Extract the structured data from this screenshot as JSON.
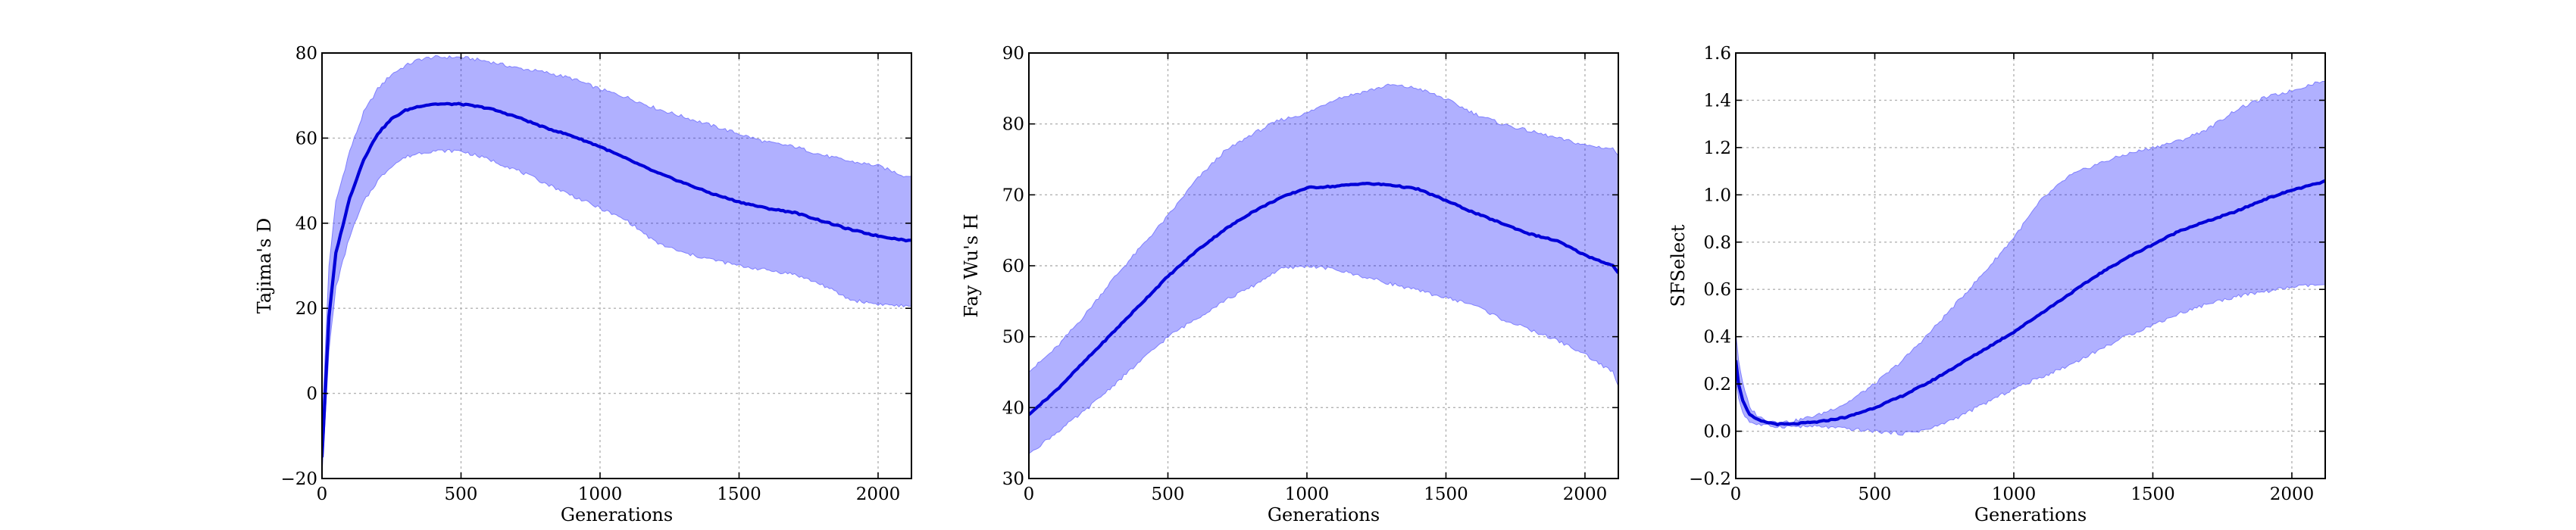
{
  "chart_data": [
    {
      "type": "line",
      "title": "",
      "xlabel": "Generations",
      "ylabel": "Tajima's D",
      "xlim": [
        0,
        2120
      ],
      "ylim": [
        -20,
        80
      ],
      "xticks": [
        0,
        500,
        1000,
        1500,
        2000
      ],
      "yticks": [
        -20,
        0,
        20,
        40,
        60,
        80
      ],
      "xtick_labels": [
        "0",
        "500",
        "1000",
        "1500",
        "2000"
      ],
      "ytick_labels": [
        "−20",
        "0",
        "20",
        "40",
        "60",
        "80"
      ],
      "grid": true,
      "color": "#0000d8",
      "band_color": "#b0b0ff",
      "series": [
        {
          "x": [
            0,
            25,
            50,
            100,
            150,
            200,
            250,
            300,
            350,
            400,
            450,
            500,
            550,
            600,
            700,
            800,
            900,
            1000,
            1100,
            1200,
            1300,
            1400,
            1500,
            1600,
            1700,
            1800,
            1900,
            2000,
            2100,
            2120
          ],
          "values": [
            -15,
            18,
            33,
            46,
            55,
            61,
            64.5,
            66.5,
            67.5,
            68,
            68,
            68,
            67.5,
            67,
            65,
            62.5,
            60.5,
            58,
            55,
            52,
            49.5,
            47,
            45,
            43.5,
            42.5,
            40.5,
            38.5,
            37,
            36,
            36
          ],
          "lower": [
            -19,
            10,
            25,
            37,
            45,
            50,
            53.5,
            55.5,
            56.5,
            57,
            57,
            57,
            56,
            55,
            52.5,
            49.5,
            46.5,
            43.5,
            40.5,
            35.5,
            33,
            31.5,
            30,
            29,
            28,
            25.5,
            22,
            21,
            20.5,
            20.5
          ],
          "upper": [
            -8,
            30,
            45,
            57,
            66,
            71.5,
            75,
            77,
            78.5,
            79,
            79,
            79,
            78.5,
            78,
            76.5,
            75.5,
            74,
            71.5,
            69.5,
            67,
            65,
            63,
            61,
            59,
            58,
            56,
            54.5,
            53.5,
            51,
            51
          ]
        }
      ]
    },
    {
      "type": "line",
      "title": "",
      "xlabel": "Generations",
      "ylabel": "Fay Wu's H",
      "xlim": [
        0,
        2120
      ],
      "ylim": [
        30,
        90
      ],
      "xticks": [
        0,
        500,
        1000,
        1500,
        2000
      ],
      "yticks": [
        30,
        40,
        50,
        60,
        70,
        80,
        90
      ],
      "xtick_labels": [
        "0",
        "500",
        "1000",
        "1500",
        "2000"
      ],
      "ytick_labels": [
        "30",
        "40",
        "50",
        "60",
        "70",
        "80",
        "90"
      ],
      "grid": true,
      "color": "#0000d8",
      "band_color": "#b0b0ff",
      "series": [
        {
          "x": [
            0,
            100,
            200,
            300,
            400,
            500,
            600,
            700,
            800,
            900,
            1000,
            1100,
            1200,
            1300,
            1400,
            1500,
            1600,
            1700,
            1800,
            1900,
            2000,
            2100,
            2120
          ],
          "values": [
            39,
            42.5,
            46.5,
            50.5,
            54.5,
            58.5,
            62,
            65,
            67.5,
            69.5,
            71,
            71.2,
            71.6,
            71.4,
            70.8,
            69.2,
            67.5,
            66,
            64.5,
            63.5,
            61.5,
            60,
            59
          ],
          "lower": [
            33.5,
            36.5,
            39.5,
            43,
            46.5,
            50,
            52.5,
            55,
            57,
            59.5,
            60,
            59.5,
            58.5,
            57.5,
            56.5,
            55.5,
            54.5,
            52.5,
            51,
            49.5,
            47.5,
            45,
            43
          ],
          "upper": [
            45,
            48.5,
            53,
            58,
            62.5,
            67,
            72,
            76,
            78.5,
            80.5,
            81.5,
            83.5,
            84.5,
            85.5,
            85,
            83.5,
            81.5,
            80,
            79,
            78,
            77,
            76.5,
            75.5
          ]
        }
      ]
    },
    {
      "type": "line",
      "title": "",
      "xlabel": "Generations",
      "ylabel": "SFSelect",
      "xlim": [
        0,
        2120
      ],
      "ylim": [
        -0.2,
        1.6
      ],
      "xticks": [
        0,
        500,
        1000,
        1500,
        2000
      ],
      "yticks": [
        -0.2,
        0.0,
        0.2,
        0.4,
        0.6,
        0.8,
        1.0,
        1.2,
        1.4,
        1.6
      ],
      "xtick_labels": [
        "0",
        "500",
        "1000",
        "1500",
        "2000"
      ],
      "ytick_labels": [
        "−0.2",
        "0.0",
        "0.2",
        "0.4",
        "0.6",
        "0.8",
        "1.0",
        "1.2",
        "1.4",
        "1.6"
      ],
      "grid": true,
      "color": "#0000d8",
      "band_color": "#b0b0ff",
      "series": [
        {
          "x": [
            0,
            10,
            25,
            50,
            75,
            100,
            150,
            200,
            300,
            400,
            500,
            600,
            700,
            800,
            900,
            1000,
            1100,
            1200,
            1300,
            1400,
            1500,
            1600,
            1700,
            1800,
            1900,
            2000,
            2100,
            2120
          ],
          "values": [
            0.3,
            0.2,
            0.13,
            0.07,
            0.05,
            0.04,
            0.03,
            0.03,
            0.04,
            0.06,
            0.1,
            0.15,
            0.21,
            0.28,
            0.35,
            0.42,
            0.5,
            0.58,
            0.66,
            0.73,
            0.79,
            0.85,
            0.89,
            0.93,
            0.98,
            1.02,
            1.05,
            1.06
          ],
          "lower": [
            0.22,
            0.14,
            0.08,
            0.04,
            0.03,
            0.025,
            0.02,
            0.02,
            0.02,
            0.01,
            0.0,
            -0.01,
            0.01,
            0.06,
            0.12,
            0.18,
            0.23,
            0.28,
            0.34,
            0.4,
            0.45,
            0.5,
            0.54,
            0.57,
            0.59,
            0.61,
            0.62,
            0.62
          ],
          "upper": [
            0.42,
            0.3,
            0.2,
            0.1,
            0.07,
            0.05,
            0.04,
            0.04,
            0.07,
            0.12,
            0.2,
            0.3,
            0.42,
            0.55,
            0.68,
            0.82,
            0.98,
            1.08,
            1.13,
            1.17,
            1.2,
            1.23,
            1.28,
            1.36,
            1.41,
            1.44,
            1.48,
            1.48
          ]
        }
      ]
    }
  ]
}
